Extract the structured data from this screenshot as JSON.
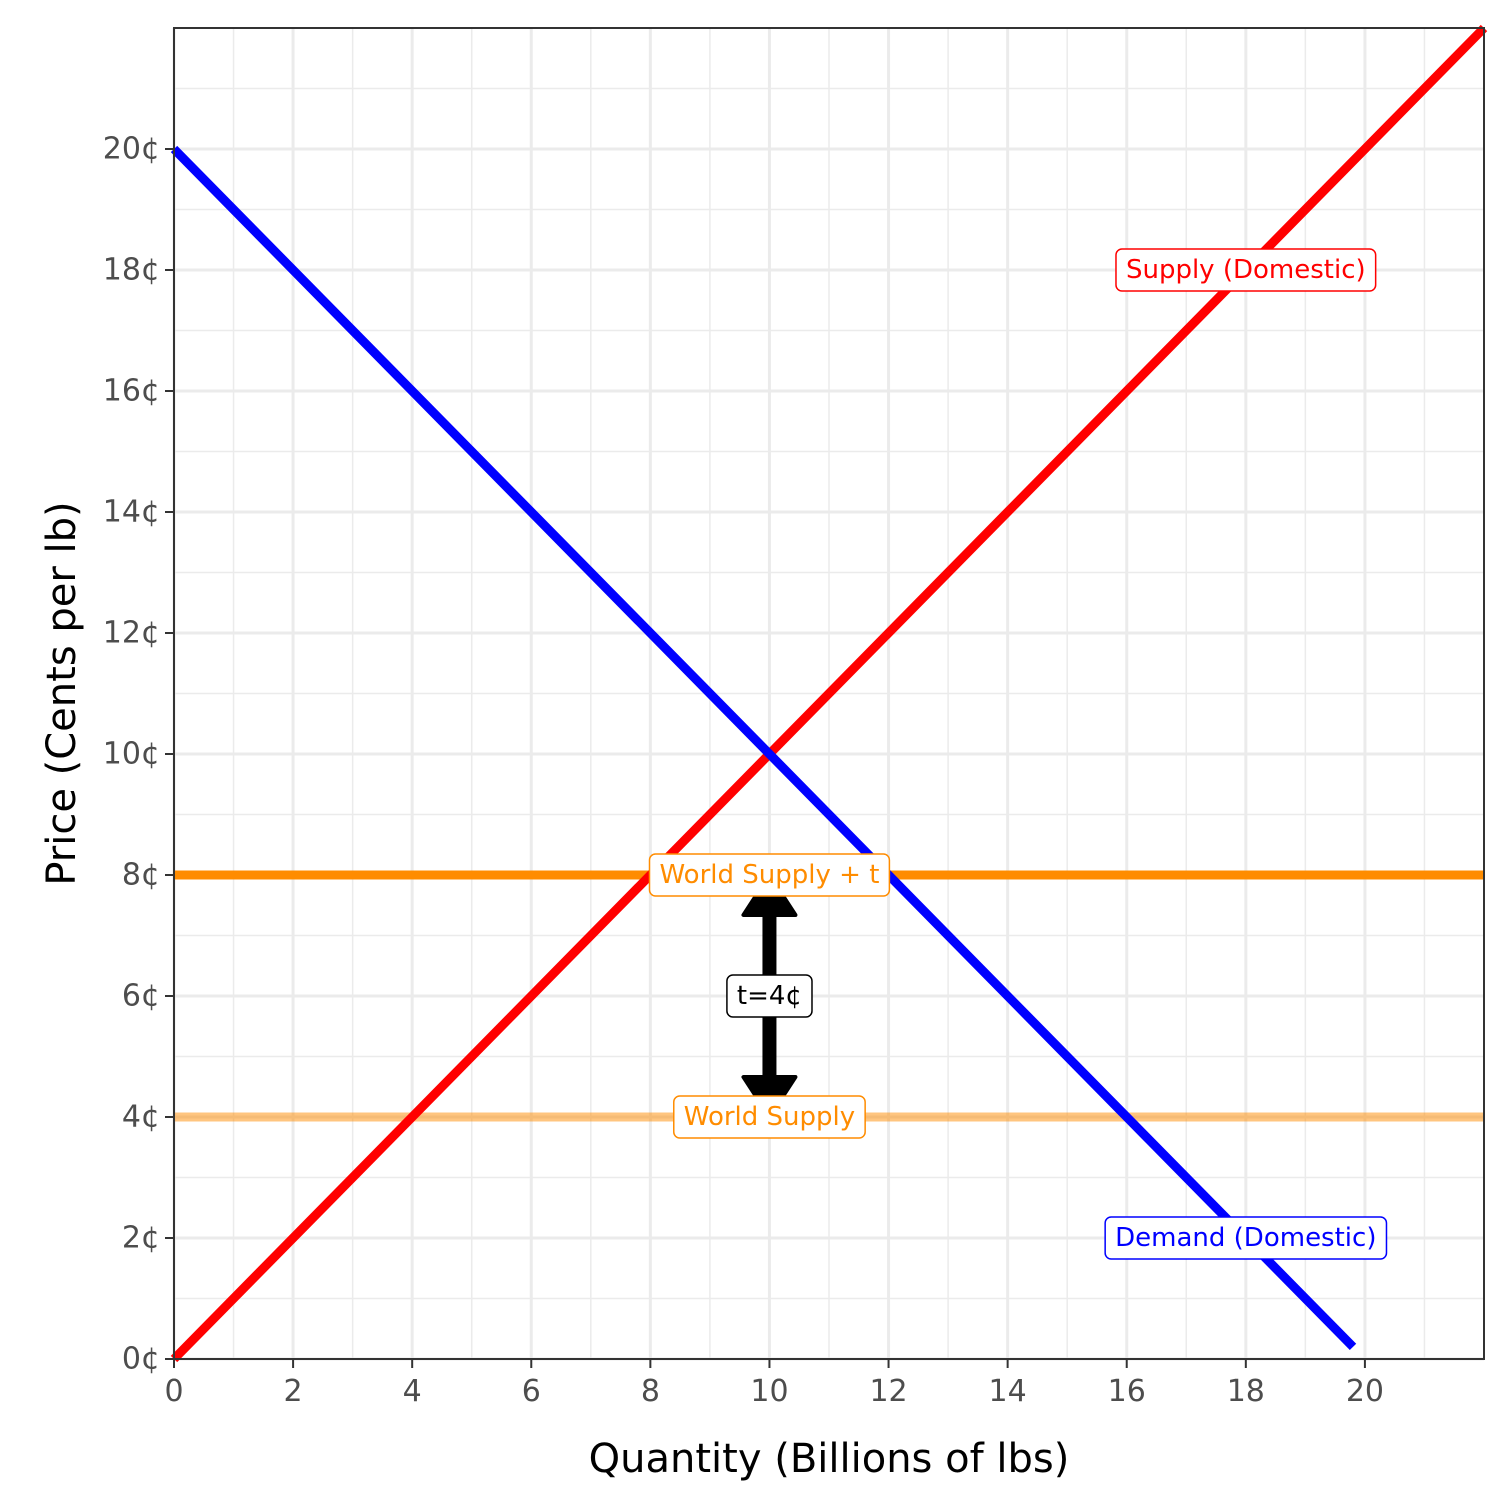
{
  "chart_data": {
    "type": "line",
    "title": "",
    "xlabel": "Quantity (Billions of lbs)",
    "ylabel": "Price (Cents per lb)",
    "xlim": [
      0,
      22
    ],
    "ylim": [
      0,
      22
    ],
    "x_ticks": [
      0,
      2,
      4,
      6,
      8,
      10,
      12,
      14,
      16,
      18,
      20
    ],
    "y_ticks": [
      0,
      2,
      4,
      6,
      8,
      10,
      12,
      14,
      16,
      18,
      20
    ],
    "x_tick_labels": [
      "0",
      "2",
      "4",
      "6",
      "8",
      "10",
      "12",
      "14",
      "16",
      "18",
      "20"
    ],
    "y_tick_labels": [
      "0¢",
      "2¢",
      "4¢",
      "6¢",
      "8¢",
      "10¢",
      "12¢",
      "14¢",
      "16¢",
      "18¢",
      "20¢"
    ],
    "grid": true,
    "series": [
      {
        "name": "Supply (Domestic)",
        "color": "#ff0000",
        "x": [
          0,
          22
        ],
        "y": [
          0,
          22
        ]
      },
      {
        "name": "Demand (Domestic)",
        "color": "#0000ff",
        "x": [
          0,
          19.8
        ],
        "y": [
          20,
          0.2
        ]
      },
      {
        "name": "World Supply + t",
        "color": "#ff8c00",
        "opacity": 1,
        "x": [
          0,
          22
        ],
        "y": [
          8,
          8
        ]
      },
      {
        "name": "World Supply",
        "color": "#ff8c00",
        "opacity": 0.5,
        "x": [
          0,
          22
        ],
        "y": [
          4,
          4
        ]
      }
    ],
    "labels": [
      {
        "text": "Supply (Domestic)",
        "x": 18,
        "y": 18,
        "color": "#ff0000"
      },
      {
        "text": "Demand (Domestic)",
        "x": 18,
        "y": 2,
        "color": "#0000ff"
      },
      {
        "text": "World Supply + t",
        "x": 10,
        "y": 8,
        "color": "#ff8c00"
      },
      {
        "text": "World Supply",
        "x": 10,
        "y": 4,
        "color": "#ff8c00"
      },
      {
        "text": "t=4¢",
        "x": 10,
        "y": 6,
        "color": "#000000"
      }
    ],
    "tariff_arrow": {
      "x": 10,
      "y_from": 4,
      "y_to": 8,
      "color": "#000000",
      "double_headed": true
    }
  }
}
